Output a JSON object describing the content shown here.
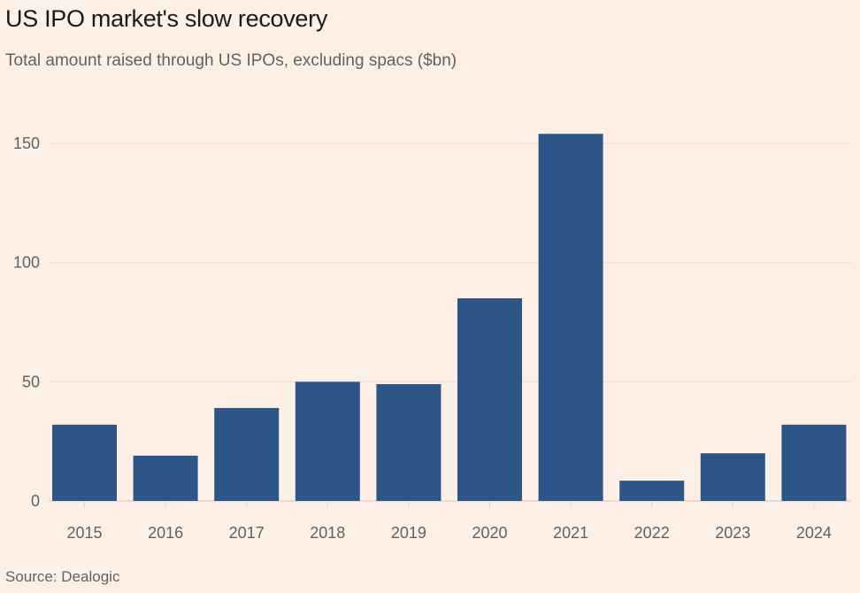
{
  "chart_data": {
    "type": "bar",
    "title": "US IPO market's slow recovery",
    "subtitle": "Total amount raised through US IPOs, excluding spacs ($bn)",
    "source": "Source: Dealogic",
    "categories": [
      "2015",
      "2016",
      "2017",
      "2018",
      "2019",
      "2020",
      "2021",
      "2022",
      "2023",
      "2024"
    ],
    "values": [
      32,
      19,
      39,
      50,
      49,
      85,
      154,
      8.5,
      20,
      32
    ],
    "xlabel": "",
    "ylabel": "",
    "ylim": [
      0,
      150
    ],
    "yticks": [
      0,
      50,
      100,
      150
    ],
    "grid": true,
    "bar_color": "#2e5588",
    "legend": "none"
  }
}
